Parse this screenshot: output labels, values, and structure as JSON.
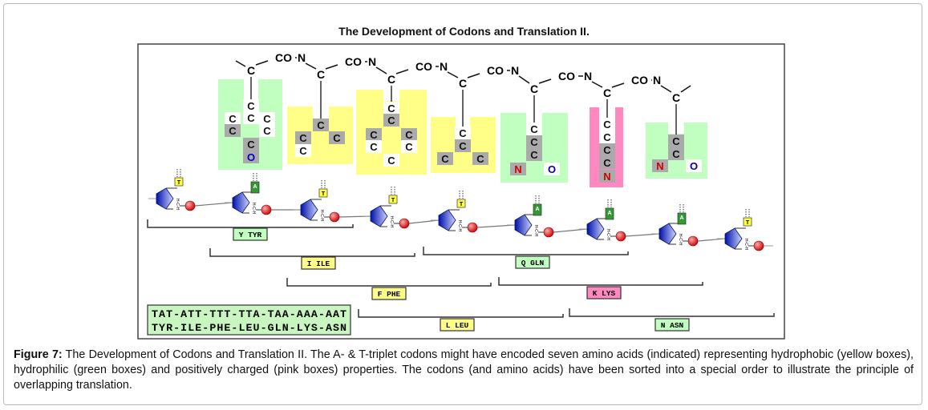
{
  "title": "The Development of Codons and Translation II.",
  "colors": {
    "hydrophobic": "#ffff88",
    "hydrophilic": "#c0ffc0",
    "positive": "#ff88c0",
    "atom_gray": "#aaaaaa",
    "oxygen": "#0000bb",
    "nitrogen": "#cc0000",
    "base_T": "#ffff44",
    "base_A": "#339933",
    "sugar": "#2233dd",
    "phosphate": "#dd2222"
  },
  "backbone": {
    "carbonyl": "CO",
    "nitrogen": "N",
    "alpha": "C"
  },
  "side_chains": [
    {
      "name": "TYR",
      "color": "hydrophilic",
      "atoms": [
        "C",
        "C",
        "C",
        "C",
        "C",
        "C",
        "C",
        "O"
      ]
    },
    {
      "name": "ILE",
      "color": "hydrophobic",
      "atoms": [
        "C",
        "C",
        "C",
        "C"
      ]
    },
    {
      "name": "PHE",
      "color": "hydrophobic",
      "atoms": [
        "C",
        "C",
        "C",
        "C",
        "C",
        "C",
        "C"
      ]
    },
    {
      "name": "LEU",
      "color": "hydrophobic",
      "atoms": [
        "C",
        "C",
        "C",
        "C"
      ]
    },
    {
      "name": "GLN",
      "color": "hydrophilic",
      "atoms": [
        "C",
        "C",
        "C",
        "N",
        "O"
      ]
    },
    {
      "name": "LYS",
      "color": "positive",
      "atoms": [
        "C",
        "C",
        "C",
        "C",
        "N"
      ]
    },
    {
      "name": "ASN",
      "color": "hydrophilic",
      "atoms": [
        "C",
        "C",
        "N",
        "O"
      ]
    }
  ],
  "nucleotides": [
    "T",
    "A",
    "T",
    "T",
    "T",
    "A",
    "A",
    "A",
    "T"
  ],
  "sugar_label": "H-C-H",
  "codon_brackets": [
    {
      "label": "Y TYR",
      "color": "hydrophilic"
    },
    {
      "label": "I ILE",
      "color": "hydrophobic"
    },
    {
      "label": "F PHE",
      "color": "hydrophobic"
    },
    {
      "label": "L LEU",
      "color": "hydrophobic"
    },
    {
      "label": "Q GLN",
      "color": "hydrophilic"
    },
    {
      "label": "K LYS",
      "color": "positive"
    },
    {
      "label": "N ASN",
      "color": "hydrophilic"
    }
  ],
  "sequence": {
    "codons": "TAT-ATT-TTT-TTA-TAA-AAA-AAT",
    "amino_acids": "TYR-ILE-PHE-LEU-GLN-LYS-ASN"
  },
  "caption": {
    "label": "Figure 7:",
    "text": " The Development of Codons and Translation II. The A- & T-triplet codons might have encoded seven amino acids (indicated) representing hydrophobic (yellow boxes), hydrophilic (green boxes) and positively charged (pink boxes) properties. The codons (and amino acids) have been sorted into a special order to illustrate the principle of overlapping translation."
  }
}
